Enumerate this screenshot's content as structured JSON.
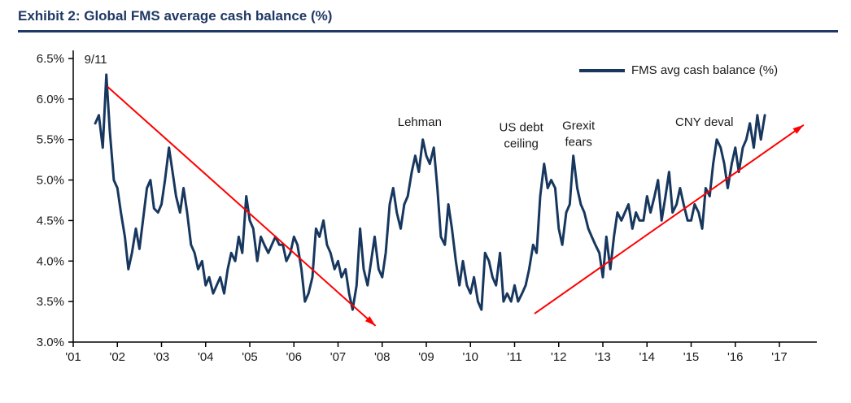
{
  "page": {
    "title": "Exhibit 2: Global FMS average cash balance (%)"
  },
  "chart_data": {
    "type": "line",
    "title": "Exhibit 2: Global FMS average cash balance (%)",
    "xlabel": "",
    "ylabel": "",
    "xlim": [
      2001,
      2017.8
    ],
    "ylim": [
      3.0,
      6.5
    ],
    "grid": false,
    "legend_position": "top-right",
    "legend": [
      {
        "name": "FMS avg cash balance (%)",
        "color": "#17375e"
      }
    ],
    "y_ticks": [
      {
        "value": 3.0,
        "label": "3.0%"
      },
      {
        "value": 3.5,
        "label": "3.5%"
      },
      {
        "value": 4.0,
        "label": "4.0%"
      },
      {
        "value": 4.5,
        "label": "4.5%"
      },
      {
        "value": 5.0,
        "label": "5.0%"
      },
      {
        "value": 5.5,
        "label": "5.5%"
      },
      {
        "value": 6.0,
        "label": "6.0%"
      },
      {
        "value": 6.5,
        "label": "6.5%"
      }
    ],
    "x_ticks": [
      {
        "value": 2001,
        "label": "'01"
      },
      {
        "value": 2002,
        "label": "'02"
      },
      {
        "value": 2003,
        "label": "'03"
      },
      {
        "value": 2004,
        "label": "'04"
      },
      {
        "value": 2005,
        "label": "'05"
      },
      {
        "value": 2006,
        "label": "'06"
      },
      {
        "value": 2007,
        "label": "'07"
      },
      {
        "value": 2008,
        "label": "'08"
      },
      {
        "value": 2009,
        "label": "'09"
      },
      {
        "value": 2010,
        "label": "'10"
      },
      {
        "value": 2011,
        "label": "'11"
      },
      {
        "value": 2012,
        "label": "'12"
      },
      {
        "value": 2013,
        "label": "'13"
      },
      {
        "value": 2014,
        "label": "'14"
      },
      {
        "value": 2015,
        "label": "'15"
      },
      {
        "value": 2016,
        "label": "'16"
      },
      {
        "value": 2017,
        "label": "'17"
      }
    ],
    "series": [
      {
        "name": "FMS avg cash balance (%)",
        "color": "#17375e",
        "points": [
          [
            2001.5,
            5.7
          ],
          [
            2001.58,
            5.8
          ],
          [
            2001.67,
            5.4
          ],
          [
            2001.75,
            6.3
          ],
          [
            2001.83,
            5.6
          ],
          [
            2001.92,
            5.0
          ],
          [
            2002.0,
            4.9
          ],
          [
            2002.08,
            4.6
          ],
          [
            2002.17,
            4.3
          ],
          [
            2002.25,
            3.9
          ],
          [
            2002.33,
            4.1
          ],
          [
            2002.42,
            4.4
          ],
          [
            2002.5,
            4.15
          ],
          [
            2002.58,
            4.5
          ],
          [
            2002.67,
            4.9
          ],
          [
            2002.75,
            5.0
          ],
          [
            2002.83,
            4.65
          ],
          [
            2002.92,
            4.6
          ],
          [
            2003.0,
            4.7
          ],
          [
            2003.08,
            5.0
          ],
          [
            2003.17,
            5.4
          ],
          [
            2003.25,
            5.1
          ],
          [
            2003.33,
            4.8
          ],
          [
            2003.42,
            4.6
          ],
          [
            2003.5,
            4.9
          ],
          [
            2003.58,
            4.6
          ],
          [
            2003.67,
            4.2
          ],
          [
            2003.75,
            4.1
          ],
          [
            2003.83,
            3.9
          ],
          [
            2003.92,
            4.0
          ],
          [
            2004.0,
            3.7
          ],
          [
            2004.08,
            3.8
          ],
          [
            2004.17,
            3.6
          ],
          [
            2004.25,
            3.7
          ],
          [
            2004.33,
            3.8
          ],
          [
            2004.42,
            3.6
          ],
          [
            2004.5,
            3.9
          ],
          [
            2004.58,
            4.1
          ],
          [
            2004.67,
            4.0
          ],
          [
            2004.75,
            4.3
          ],
          [
            2004.83,
            4.1
          ],
          [
            2004.92,
            4.8
          ],
          [
            2005.0,
            4.5
          ],
          [
            2005.08,
            4.4
          ],
          [
            2005.17,
            4.0
          ],
          [
            2005.25,
            4.3
          ],
          [
            2005.33,
            4.2
          ],
          [
            2005.42,
            4.1
          ],
          [
            2005.5,
            4.2
          ],
          [
            2005.58,
            4.3
          ],
          [
            2005.67,
            4.2
          ],
          [
            2005.75,
            4.2
          ],
          [
            2005.83,
            4.0
          ],
          [
            2005.92,
            4.1
          ],
          [
            2006.0,
            4.3
          ],
          [
            2006.08,
            4.2
          ],
          [
            2006.17,
            3.9
          ],
          [
            2006.25,
            3.5
          ],
          [
            2006.33,
            3.6
          ],
          [
            2006.42,
            3.8
          ],
          [
            2006.5,
            4.4
          ],
          [
            2006.58,
            4.3
          ],
          [
            2006.67,
            4.5
          ],
          [
            2006.75,
            4.2
          ],
          [
            2006.83,
            4.1
          ],
          [
            2006.92,
            3.9
          ],
          [
            2007.0,
            4.0
          ],
          [
            2007.08,
            3.8
          ],
          [
            2007.17,
            3.9
          ],
          [
            2007.25,
            3.6
          ],
          [
            2007.33,
            3.4
          ],
          [
            2007.42,
            3.7
          ],
          [
            2007.5,
            4.4
          ],
          [
            2007.58,
            3.9
          ],
          [
            2007.67,
            3.7
          ],
          [
            2007.75,
            4.0
          ],
          [
            2007.83,
            4.3
          ],
          [
            2007.92,
            3.9
          ],
          [
            2008.0,
            3.8
          ],
          [
            2008.08,
            4.1
          ],
          [
            2008.17,
            4.7
          ],
          [
            2008.25,
            4.9
          ],
          [
            2008.33,
            4.6
          ],
          [
            2008.42,
            4.4
          ],
          [
            2008.5,
            4.7
          ],
          [
            2008.58,
            4.8
          ],
          [
            2008.67,
            5.1
          ],
          [
            2008.75,
            5.3
          ],
          [
            2008.83,
            5.1
          ],
          [
            2008.92,
            5.5
          ],
          [
            2009.0,
            5.3
          ],
          [
            2009.08,
            5.2
          ],
          [
            2009.17,
            5.4
          ],
          [
            2009.25,
            4.9
          ],
          [
            2009.33,
            4.3
          ],
          [
            2009.42,
            4.2
          ],
          [
            2009.5,
            4.7
          ],
          [
            2009.58,
            4.4
          ],
          [
            2009.67,
            4.0
          ],
          [
            2009.75,
            3.7
          ],
          [
            2009.83,
            4.0
          ],
          [
            2009.92,
            3.7
          ],
          [
            2010.0,
            3.6
          ],
          [
            2010.08,
            3.8
          ],
          [
            2010.17,
            3.5
          ],
          [
            2010.25,
            3.4
          ],
          [
            2010.33,
            4.1
          ],
          [
            2010.42,
            4.0
          ],
          [
            2010.5,
            3.8
          ],
          [
            2010.58,
            3.7
          ],
          [
            2010.67,
            4.1
          ],
          [
            2010.75,
            3.5
          ],
          [
            2010.83,
            3.6
          ],
          [
            2010.92,
            3.5
          ],
          [
            2011.0,
            3.7
          ],
          [
            2011.08,
            3.5
          ],
          [
            2011.17,
            3.6
          ],
          [
            2011.25,
            3.7
          ],
          [
            2011.33,
            3.9
          ],
          [
            2011.42,
            4.2
          ],
          [
            2011.5,
            4.1
          ],
          [
            2011.58,
            4.8
          ],
          [
            2011.67,
            5.2
          ],
          [
            2011.75,
            4.9
          ],
          [
            2011.83,
            5.0
          ],
          [
            2011.92,
            4.9
          ],
          [
            2012.0,
            4.4
          ],
          [
            2012.08,
            4.2
          ],
          [
            2012.17,
            4.6
          ],
          [
            2012.25,
            4.7
          ],
          [
            2012.33,
            5.3
          ],
          [
            2012.42,
            4.9
          ],
          [
            2012.5,
            4.7
          ],
          [
            2012.58,
            4.6
          ],
          [
            2012.67,
            4.4
          ],
          [
            2012.75,
            4.3
          ],
          [
            2012.83,
            4.2
          ],
          [
            2012.92,
            4.1
          ],
          [
            2013.0,
            3.8
          ],
          [
            2013.08,
            4.3
          ],
          [
            2013.17,
            3.9
          ],
          [
            2013.25,
            4.3
          ],
          [
            2013.33,
            4.6
          ],
          [
            2013.42,
            4.5
          ],
          [
            2013.5,
            4.6
          ],
          [
            2013.58,
            4.7
          ],
          [
            2013.67,
            4.4
          ],
          [
            2013.75,
            4.6
          ],
          [
            2013.83,
            4.5
          ],
          [
            2013.92,
            4.5
          ],
          [
            2014.0,
            4.8
          ],
          [
            2014.08,
            4.6
          ],
          [
            2014.17,
            4.8
          ],
          [
            2014.25,
            5.0
          ],
          [
            2014.33,
            4.5
          ],
          [
            2014.42,
            4.8
          ],
          [
            2014.5,
            5.1
          ],
          [
            2014.58,
            4.6
          ],
          [
            2014.67,
            4.7
          ],
          [
            2014.75,
            4.9
          ],
          [
            2014.83,
            4.7
          ],
          [
            2014.92,
            4.5
          ],
          [
            2015.0,
            4.5
          ],
          [
            2015.08,
            4.7
          ],
          [
            2015.17,
            4.6
          ],
          [
            2015.25,
            4.4
          ],
          [
            2015.33,
            4.9
          ],
          [
            2015.42,
            4.8
          ],
          [
            2015.5,
            5.2
          ],
          [
            2015.58,
            5.5
          ],
          [
            2015.67,
            5.4
          ],
          [
            2015.75,
            5.2
          ],
          [
            2015.83,
            4.9
          ],
          [
            2015.92,
            5.2
          ],
          [
            2016.0,
            5.4
          ],
          [
            2016.08,
            5.1
          ],
          [
            2016.17,
            5.4
          ],
          [
            2016.25,
            5.5
          ],
          [
            2016.33,
            5.7
          ],
          [
            2016.42,
            5.4
          ],
          [
            2016.5,
            5.8
          ],
          [
            2016.58,
            5.5
          ],
          [
            2016.67,
            5.8
          ]
        ]
      }
    ],
    "annotations": [
      {
        "text": [
          "9/11"
        ],
        "x": 2001.25,
        "y": 6.44,
        "anchor": "start"
      },
      {
        "text": [
          "Lehman"
        ],
        "x": 2008.85,
        "y": 5.67,
        "anchor": "middle"
      },
      {
        "text": [
          "US debt",
          "ceiling"
        ],
        "x": 2011.15,
        "y": 5.6,
        "anchor": "middle"
      },
      {
        "text": [
          "Grexit",
          "fears"
        ],
        "x": 2012.45,
        "y": 5.62,
        "anchor": "middle"
      },
      {
        "text": [
          "CNY deval"
        ],
        "x": 2015.3,
        "y": 5.67,
        "anchor": "middle"
      }
    ],
    "arrows": [
      {
        "from": [
          2001.78,
          6.15
        ],
        "to": [
          2007.85,
          3.2
        ],
        "color": "#ff0000"
      },
      {
        "from": [
          2011.45,
          3.35
        ],
        "to": [
          2017.55,
          5.68
        ],
        "color": "#ff0000"
      }
    ]
  }
}
